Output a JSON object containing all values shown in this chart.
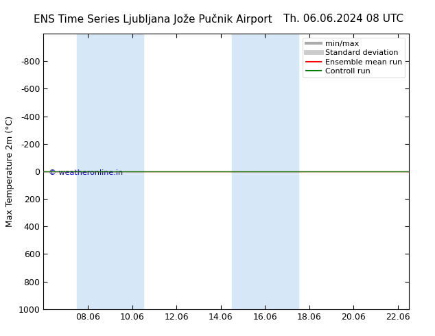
{
  "title_left": "ENS Time Series Ljubljana Jože Pučnik Airport",
  "title_right": "Th. 06.06.2024 08 UTC",
  "ylabel": "Max Temperature 2m (°C)",
  "watermark": "© weatheronline.in",
  "background_color": "#ffffff",
  "plot_bg_color": "#ffffff",
  "ylim_top": -1000,
  "ylim_bottom": 1000,
  "yticks": [
    -800,
    -600,
    -400,
    -200,
    0,
    200,
    400,
    600,
    800,
    1000
  ],
  "xlim_start": 6.0,
  "xlim_end": 22.5,
  "xtick_labels": [
    "08.06",
    "10.06",
    "12.06",
    "14.06",
    "16.06",
    "18.06",
    "20.06",
    "22.06"
  ],
  "xtick_positions": [
    8,
    10,
    12,
    14,
    16,
    18,
    20,
    22
  ],
  "shaded_columns": [
    {
      "xmin": 7.5,
      "xmax": 9.0
    },
    {
      "xmin": 9.0,
      "xmax": 10.5
    },
    {
      "xmin": 14.5,
      "xmax": 16.0
    },
    {
      "xmin": 16.0,
      "xmax": 17.5
    }
  ],
  "shade_color": "#d6e8f7",
  "control_run_y": 0,
  "ensemble_mean_y": 0,
  "line_color_control": "#008000",
  "line_color_ensemble": "#ff0000",
  "legend_items": [
    {
      "label": "min/max",
      "color": "#aaaaaa",
      "lw": 3
    },
    {
      "label": "Standard deviation",
      "color": "#cccccc",
      "lw": 5
    },
    {
      "label": "Ensemble mean run",
      "color": "#ff0000",
      "lw": 1.5
    },
    {
      "label": "Controll run",
      "color": "#008000",
      "lw": 1.5
    }
  ],
  "title_fontsize": 11,
  "axis_fontsize": 9,
  "legend_fontsize": 8,
  "watermark_color": "#0000cc",
  "tick_color": "#000000",
  "spine_color": "#000000"
}
